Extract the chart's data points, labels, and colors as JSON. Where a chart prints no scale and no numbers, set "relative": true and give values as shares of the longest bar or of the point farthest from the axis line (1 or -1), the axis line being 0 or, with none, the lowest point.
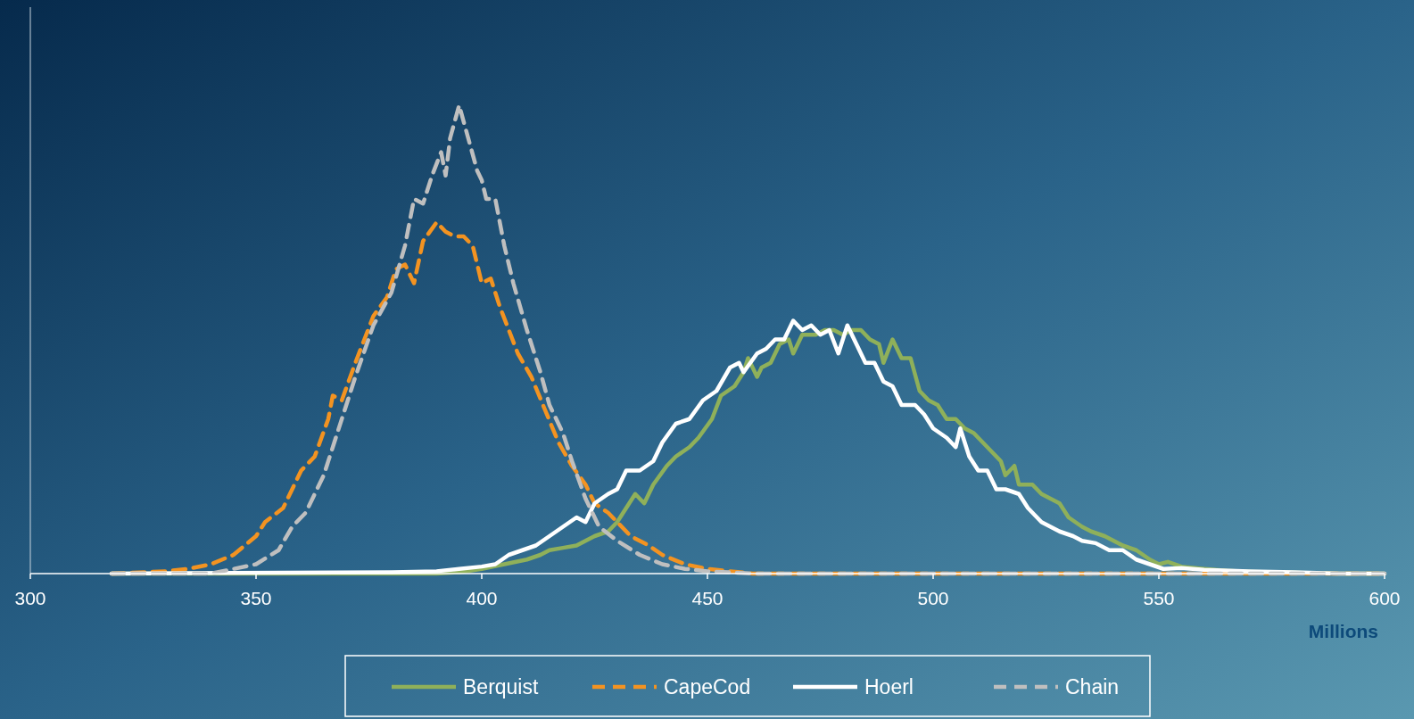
{
  "chart_data": {
    "type": "line",
    "xlabel": "Millions",
    "relative": true,
    "xlim": [
      300,
      600
    ],
    "xticks": [
      300,
      350,
      400,
      450,
      500,
      550,
      600
    ],
    "legend": "bottom",
    "series": [
      {
        "name": "Berquist",
        "color": "#8fb05a",
        "line_style": "solid",
        "x": [
          318,
          390,
          395,
          400,
          405,
          410,
          413,
          415,
          418,
          421,
          425,
          428,
          430,
          432,
          434,
          436,
          438,
          441,
          443,
          446,
          448,
          451,
          453,
          456,
          458,
          459,
          461,
          462,
          464,
          466,
          468,
          469,
          471,
          474,
          476,
          478,
          480,
          482,
          484,
          486,
          488,
          489,
          491,
          493,
          495,
          497,
          499,
          501,
          503,
          505,
          507,
          509,
          511,
          513,
          515,
          516,
          518,
          519,
          522,
          524,
          526,
          528,
          530,
          533,
          535,
          538,
          540,
          542,
          545,
          548,
          550,
          552,
          555,
          560,
          565,
          570,
          580,
          590,
          600
        ],
        "values": [
          0,
          0,
          0.003,
          0.01,
          0.02,
          0.03,
          0.04,
          0.05,
          0.055,
          0.06,
          0.08,
          0.09,
          0.11,
          0.14,
          0.17,
          0.15,
          0.19,
          0.23,
          0.25,
          0.27,
          0.29,
          0.33,
          0.38,
          0.4,
          0.43,
          0.46,
          0.42,
          0.44,
          0.45,
          0.49,
          0.5,
          0.47,
          0.51,
          0.51,
          0.52,
          0.52,
          0.51,
          0.52,
          0.52,
          0.5,
          0.49,
          0.45,
          0.5,
          0.46,
          0.46,
          0.39,
          0.37,
          0.36,
          0.33,
          0.33,
          0.31,
          0.3,
          0.28,
          0.26,
          0.24,
          0.21,
          0.23,
          0.19,
          0.19,
          0.17,
          0.16,
          0.15,
          0.12,
          0.1,
          0.09,
          0.08,
          0.07,
          0.06,
          0.05,
          0.03,
          0.02,
          0.025,
          0.015,
          0.01,
          0.006,
          0.004,
          0.002,
          0,
          0
        ]
      },
      {
        "name": "CapeCod",
        "color": "#f39321",
        "line_style": "dashed",
        "x": [
          318,
          330,
          335,
          340,
          345,
          350,
          352,
          356,
          360,
          363,
          366,
          367,
          369,
          372,
          374,
          376,
          379,
          381,
          383,
          385,
          387,
          390,
          392,
          394,
          396,
          398,
          400,
          402,
          404,
          406,
          408,
          411,
          414,
          417,
          420,
          423,
          425,
          428,
          430,
          433,
          437,
          440,
          445,
          450,
          455,
          460,
          600
        ],
        "values": [
          0,
          0.005,
          0.01,
          0.02,
          0.04,
          0.08,
          0.11,
          0.14,
          0.22,
          0.25,
          0.33,
          0.38,
          0.37,
          0.45,
          0.5,
          0.55,
          0.59,
          0.65,
          0.66,
          0.62,
          0.71,
          0.75,
          0.73,
          0.72,
          0.72,
          0.7,
          0.62,
          0.63,
          0.57,
          0.52,
          0.47,
          0.42,
          0.35,
          0.28,
          0.23,
          0.19,
          0.15,
          0.13,
          0.11,
          0.08,
          0.06,
          0.04,
          0.02,
          0.01,
          0.005,
          0,
          0
        ]
      },
      {
        "name": "Hoerl",
        "color": "#ffffff",
        "line_style": "solid",
        "x": [
          318,
          380,
          390,
          395,
          400,
          403,
          406,
          409,
          412,
          415,
          418,
          421,
          423,
          425,
          428,
          430,
          432,
          435,
          438,
          440,
          443,
          446,
          449,
          452,
          455,
          457,
          458,
          461,
          463,
          465,
          467,
          469,
          471,
          473,
          475,
          477,
          479,
          481,
          483,
          485,
          487,
          489,
          491,
          493,
          496,
          498,
          500,
          503,
          505,
          506,
          508,
          510,
          512,
          514,
          516,
          519,
          521,
          524,
          526,
          528,
          531,
          533,
          536,
          539,
          542,
          545,
          548,
          551,
          555,
          560,
          570,
          580,
          590,
          600
        ],
        "values": [
          0,
          0.003,
          0.005,
          0.01,
          0.015,
          0.02,
          0.04,
          0.05,
          0.06,
          0.08,
          0.1,
          0.12,
          0.11,
          0.15,
          0.17,
          0.18,
          0.22,
          0.22,
          0.24,
          0.28,
          0.32,
          0.33,
          0.37,
          0.39,
          0.44,
          0.45,
          0.43,
          0.47,
          0.48,
          0.5,
          0.5,
          0.54,
          0.52,
          0.53,
          0.51,
          0.52,
          0.47,
          0.53,
          0.49,
          0.45,
          0.45,
          0.41,
          0.4,
          0.36,
          0.36,
          0.34,
          0.31,
          0.29,
          0.27,
          0.31,
          0.25,
          0.22,
          0.22,
          0.18,
          0.18,
          0.17,
          0.14,
          0.11,
          0.1,
          0.09,
          0.08,
          0.07,
          0.065,
          0.05,
          0.05,
          0.03,
          0.02,
          0.01,
          0.012,
          0.008,
          0.005,
          0.003,
          0,
          0
        ]
      },
      {
        "name": "Chain",
        "color": "#bfbfbf",
        "line_style": "dashed",
        "x": [
          318,
          340,
          345,
          350,
          355,
          358,
          361,
          365,
          368,
          372,
          376,
          380,
          383,
          385,
          387,
          389,
          391,
          392,
          393,
          395,
          397,
          399,
          400,
          401,
          403,
          405,
          407,
          410,
          413,
          415,
          418,
          420,
          423,
          426,
          430,
          435,
          440,
          445,
          450,
          460,
          600
        ],
        "values": [
          0,
          0,
          0.01,
          0.02,
          0.05,
          0.1,
          0.13,
          0.21,
          0.3,
          0.42,
          0.53,
          0.6,
          0.7,
          0.8,
          0.79,
          0.85,
          0.9,
          0.85,
          0.93,
          1,
          0.93,
          0.86,
          0.84,
          0.8,
          0.8,
          0.7,
          0.62,
          0.52,
          0.43,
          0.36,
          0.3,
          0.24,
          0.16,
          0.1,
          0.07,
          0.04,
          0.02,
          0.01,
          0.005,
          0,
          0
        ]
      }
    ]
  }
}
